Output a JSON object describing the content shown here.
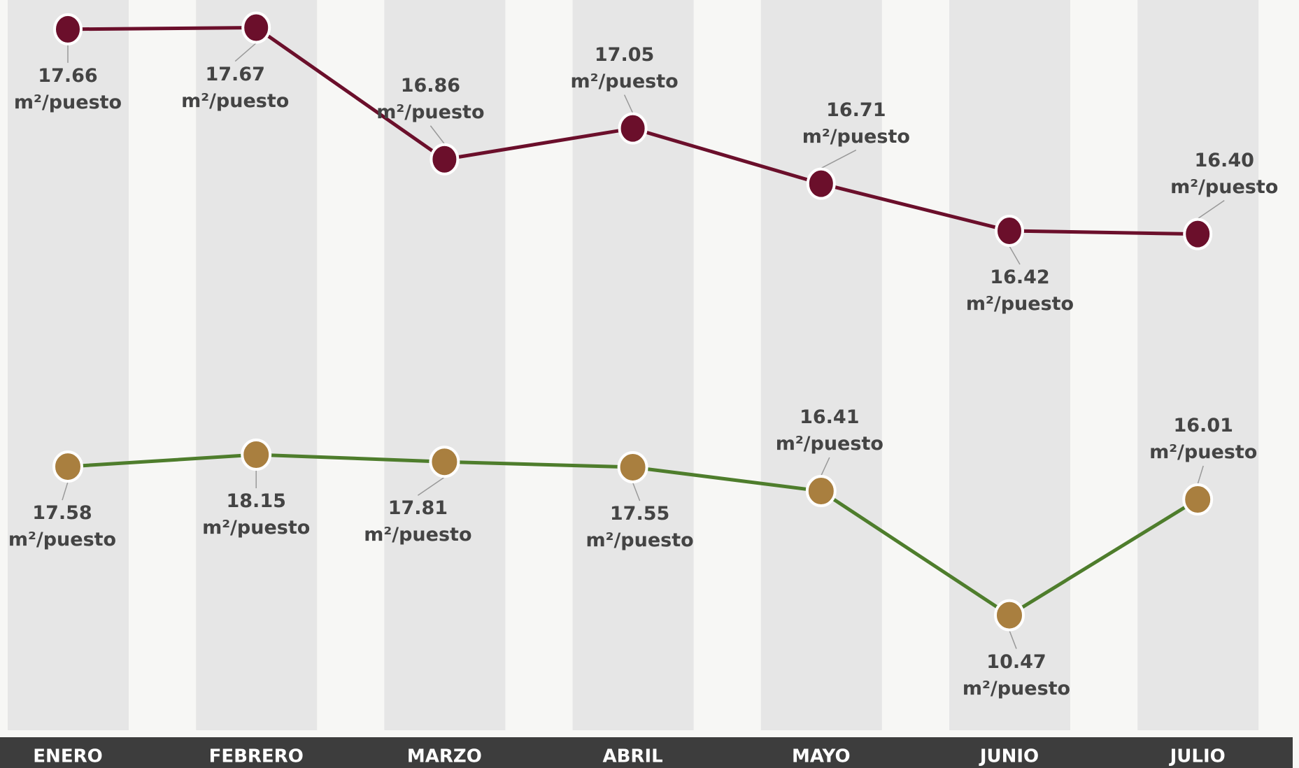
{
  "chart_data": {
    "type": "line",
    "categories": [
      "ENERO",
      "FEBRERO",
      "MARZO",
      "ABRIL",
      "MAYO",
      "JUNIO",
      "JULIO"
    ],
    "ylim": [
      13.3,
      17.84
    ],
    "y2lim": [
      4.6,
      39.9
    ],
    "series": [
      {
        "color": "#6b0f2b",
        "marker_color": "#6b0f2b",
        "values": [
          17.66,
          17.67,
          16.86,
          17.05,
          16.71,
          16.42,
          16.4
        ],
        "value_labels": [
          "17.66 m²/puesto",
          "17.67 m²/puesto",
          "16.86 m²/puesto",
          "17.05 m²/puesto",
          "16.71 m²/puesto",
          "16.42 m²/puesto",
          "16.40 m²/puesto"
        ]
      },
      {
        "color": "#4e7d2c",
        "marker_color": "#a97f3f",
        "axis": "y2",
        "values": [
          17.58,
          18.15,
          17.81,
          17.55,
          16.41,
          10.47,
          16.01
        ],
        "value_labels": [
          "17.58 m²/puesto",
          "18.15 m²/puesto",
          "17.81 m²/puesto",
          "17.55 m²/puesto",
          "16.41 m²/puesto",
          "10.47 m²/puesto",
          "16.01 m²/puesto"
        ]
      }
    ]
  }
}
